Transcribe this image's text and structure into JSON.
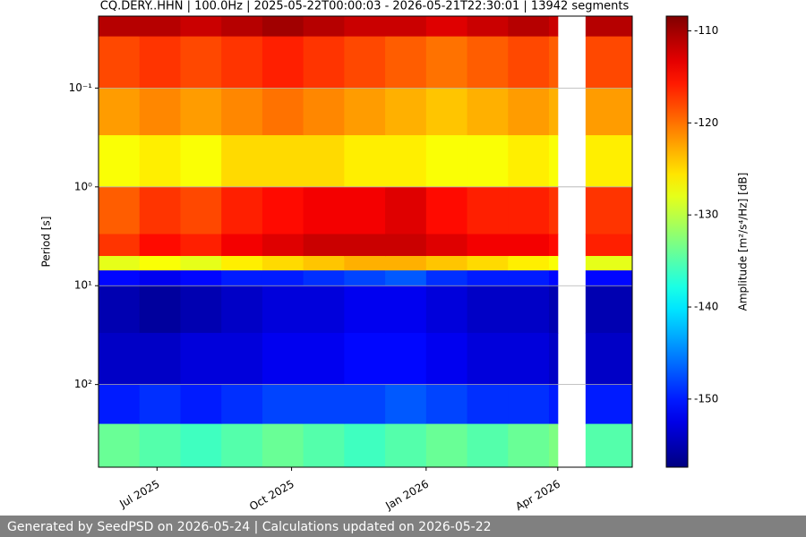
{
  "chart_data": {
    "type": "heatmap",
    "title": "CQ.DERY..HHN | 100.0Hz | 2025-05-22T00:00:03 - 2026-05-21T22:30:01 | 13942 segments",
    "y_label": "Period [s]",
    "colorbar_label": "Amplitude [m²/s⁴/Hz] [dB]",
    "footer": "Generated by SeedPSD on 2026-05-24 | Calculations updated on 2026-05-22",
    "xlim": [
      "2025-05-22T00:00:03",
      "2026-05-21T22:30:01"
    ],
    "xticks": [
      {
        "value": "2025-07",
        "label": "Jul 2025"
      },
      {
        "value": "2025-10",
        "label": "Oct 2025"
      },
      {
        "value": "2026-01",
        "label": "Jan 2026"
      },
      {
        "value": "2026-04",
        "label": "Apr 2026"
      }
    ],
    "ylim": [
      0.0187,
      686
    ],
    "log_y": true,
    "y_inverted": true,
    "yticks": [
      {
        "value": 0.1,
        "label": "10⁻¹"
      },
      {
        "value": 1,
        "label": "10⁰"
      },
      {
        "value": 10,
        "label": "10¹"
      },
      {
        "value": 100,
        "label": "10²"
      }
    ],
    "grid": "y",
    "colormap": "jet",
    "clim": [
      -157.4,
      -108.4
    ],
    "cticks": [
      -110,
      -120,
      -130,
      -140,
      -150
    ],
    "x": [
      "2025-05-22",
      "2025-06-19",
      "2025-07-17",
      "2025-08-14",
      "2025-09-11",
      "2025-10-09",
      "2025-11-06",
      "2025-12-04",
      "2026-01-01",
      "2026-01-29",
      "2026-02-26",
      "2026-03-26",
      "2026-04-01",
      "2026-04-20"
    ],
    "y": [
      0.0187,
      0.03,
      0.1,
      0.3,
      1,
      3,
      5,
      7,
      10,
      30,
      100,
      250,
      686
    ],
    "z": [
      [
        -111,
        -118,
        -122,
        -127,
        -119,
        -117,
        -128,
        -151,
        -155,
        -154,
        -150,
        -134
      ],
      [
        -111,
        -117,
        -121,
        -126,
        -117,
        -115,
        -127,
        -152,
        -156,
        -154,
        -149,
        -135
      ],
      [
        -112,
        -118,
        -122,
        -127,
        -118,
        -116,
        -128,
        -151,
        -155,
        -153,
        -150,
        -136
      ],
      [
        -111,
        -117,
        -121,
        -125,
        -116,
        -114,
        -126,
        -150,
        -154,
        -153,
        -149,
        -135
      ],
      [
        -110,
        -116,
        -120,
        -125,
        -115,
        -113,
        -125,
        -150,
        -153,
        -152,
        -148,
        -134
      ],
      [
        -111,
        -117,
        -121,
        -125,
        -114,
        -112,
        -124,
        -149,
        -153,
        -152,
        -148,
        -135
      ],
      [
        -112,
        -118,
        -122,
        -126,
        -114,
        -112,
        -123,
        -148,
        -152,
        -151,
        -148,
        -136
      ],
      [
        -112,
        -119,
        -123,
        -126,
        -113,
        -112,
        -123,
        -147,
        -152,
        -151,
        -147,
        -135
      ],
      [
        -113,
        -120,
        -124,
        -127,
        -115,
        -113,
        -124,
        -149,
        -153,
        -152,
        -148,
        -134
      ],
      [
        -112,
        -119,
        -123,
        -127,
        -116,
        -114,
        -125,
        -150,
        -154,
        -153,
        -149,
        -135
      ],
      [
        -111,
        -118,
        -122,
        -126,
        -116,
        -114,
        -126,
        -150,
        -154,
        -153,
        -149,
        -134
      ],
      [
        -112,
        -119,
        -123,
        -127,
        -117,
        -115,
        -127,
        -151,
        -155,
        -154,
        -150,
        -133
      ],
      null,
      [
        -111,
        -118,
        -122,
        -126,
        -117,
        -116,
        -128,
        -151,
        -155,
        -154,
        -150,
        -135
      ]
    ]
  }
}
